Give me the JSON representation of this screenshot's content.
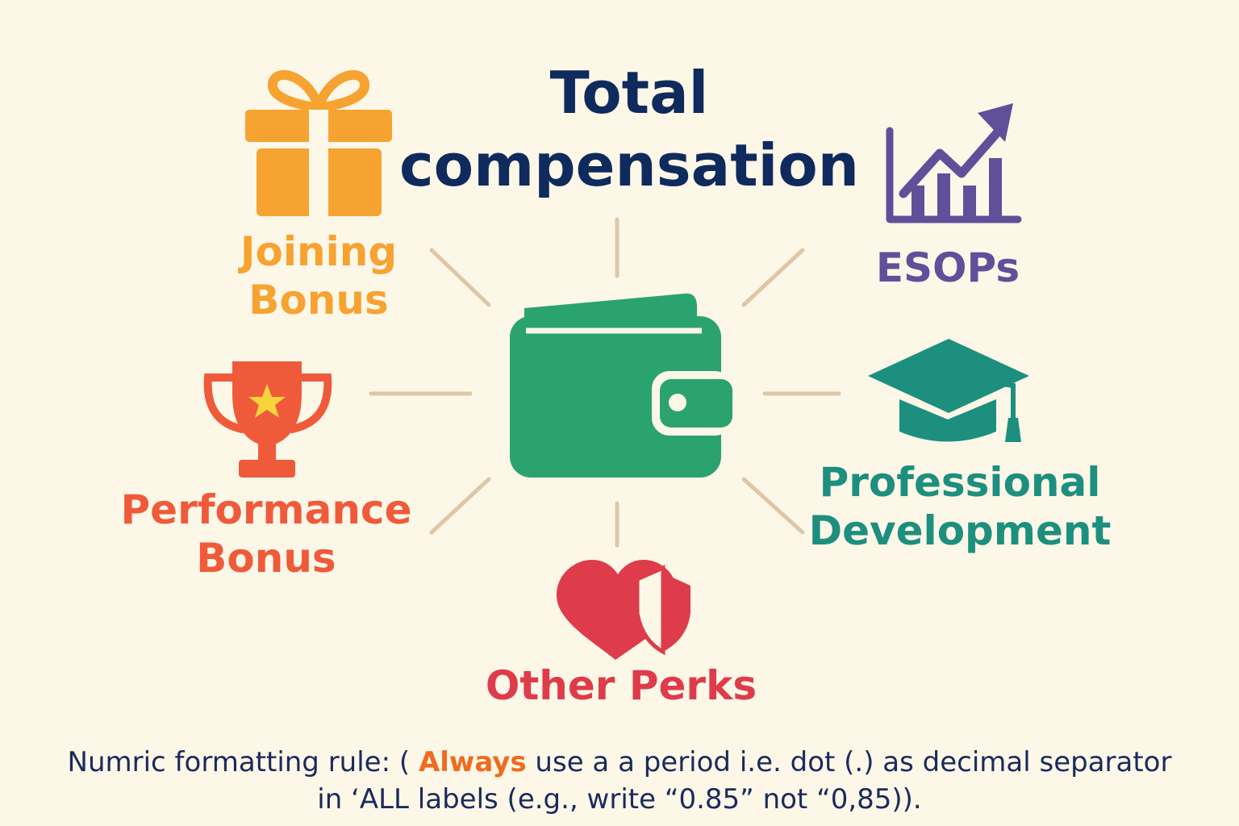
{
  "title": {
    "line1": "Total",
    "line2": "compensation"
  },
  "center": {
    "icon": "wallet-icon",
    "color": "#2aa36f"
  },
  "components": {
    "joining_bonus": {
      "line1": "Joining",
      "line2": "Bonus",
      "icon": "gift-icon",
      "color": "#f6a332"
    },
    "esops": {
      "label": "ESOPs",
      "icon": "growth-chart-icon",
      "color": "#60509a"
    },
    "performance_bonus": {
      "line1": "Performance",
      "line2": "Bonus",
      "icon": "trophy-icon",
      "color": "#ef5b3a"
    },
    "professional_development": {
      "line1": "Professional",
      "line2": "Development",
      "icon": "graduation-cap-icon",
      "color": "#1d8f7e"
    },
    "other_perks": {
      "label": "Other Perks",
      "icon": "heart-shield-icon",
      "color": "#de3c4b"
    }
  },
  "connector_color": "#dcc7a8",
  "note": {
    "prefix": "Numric formatting rule: ( ",
    "emphasis": "Always",
    "line1_rest": " use a a period i.e. dot (.) as decimal separator",
    "line2": "in ‘ALL labels (e.g., write “0.85” not “0,85))."
  }
}
